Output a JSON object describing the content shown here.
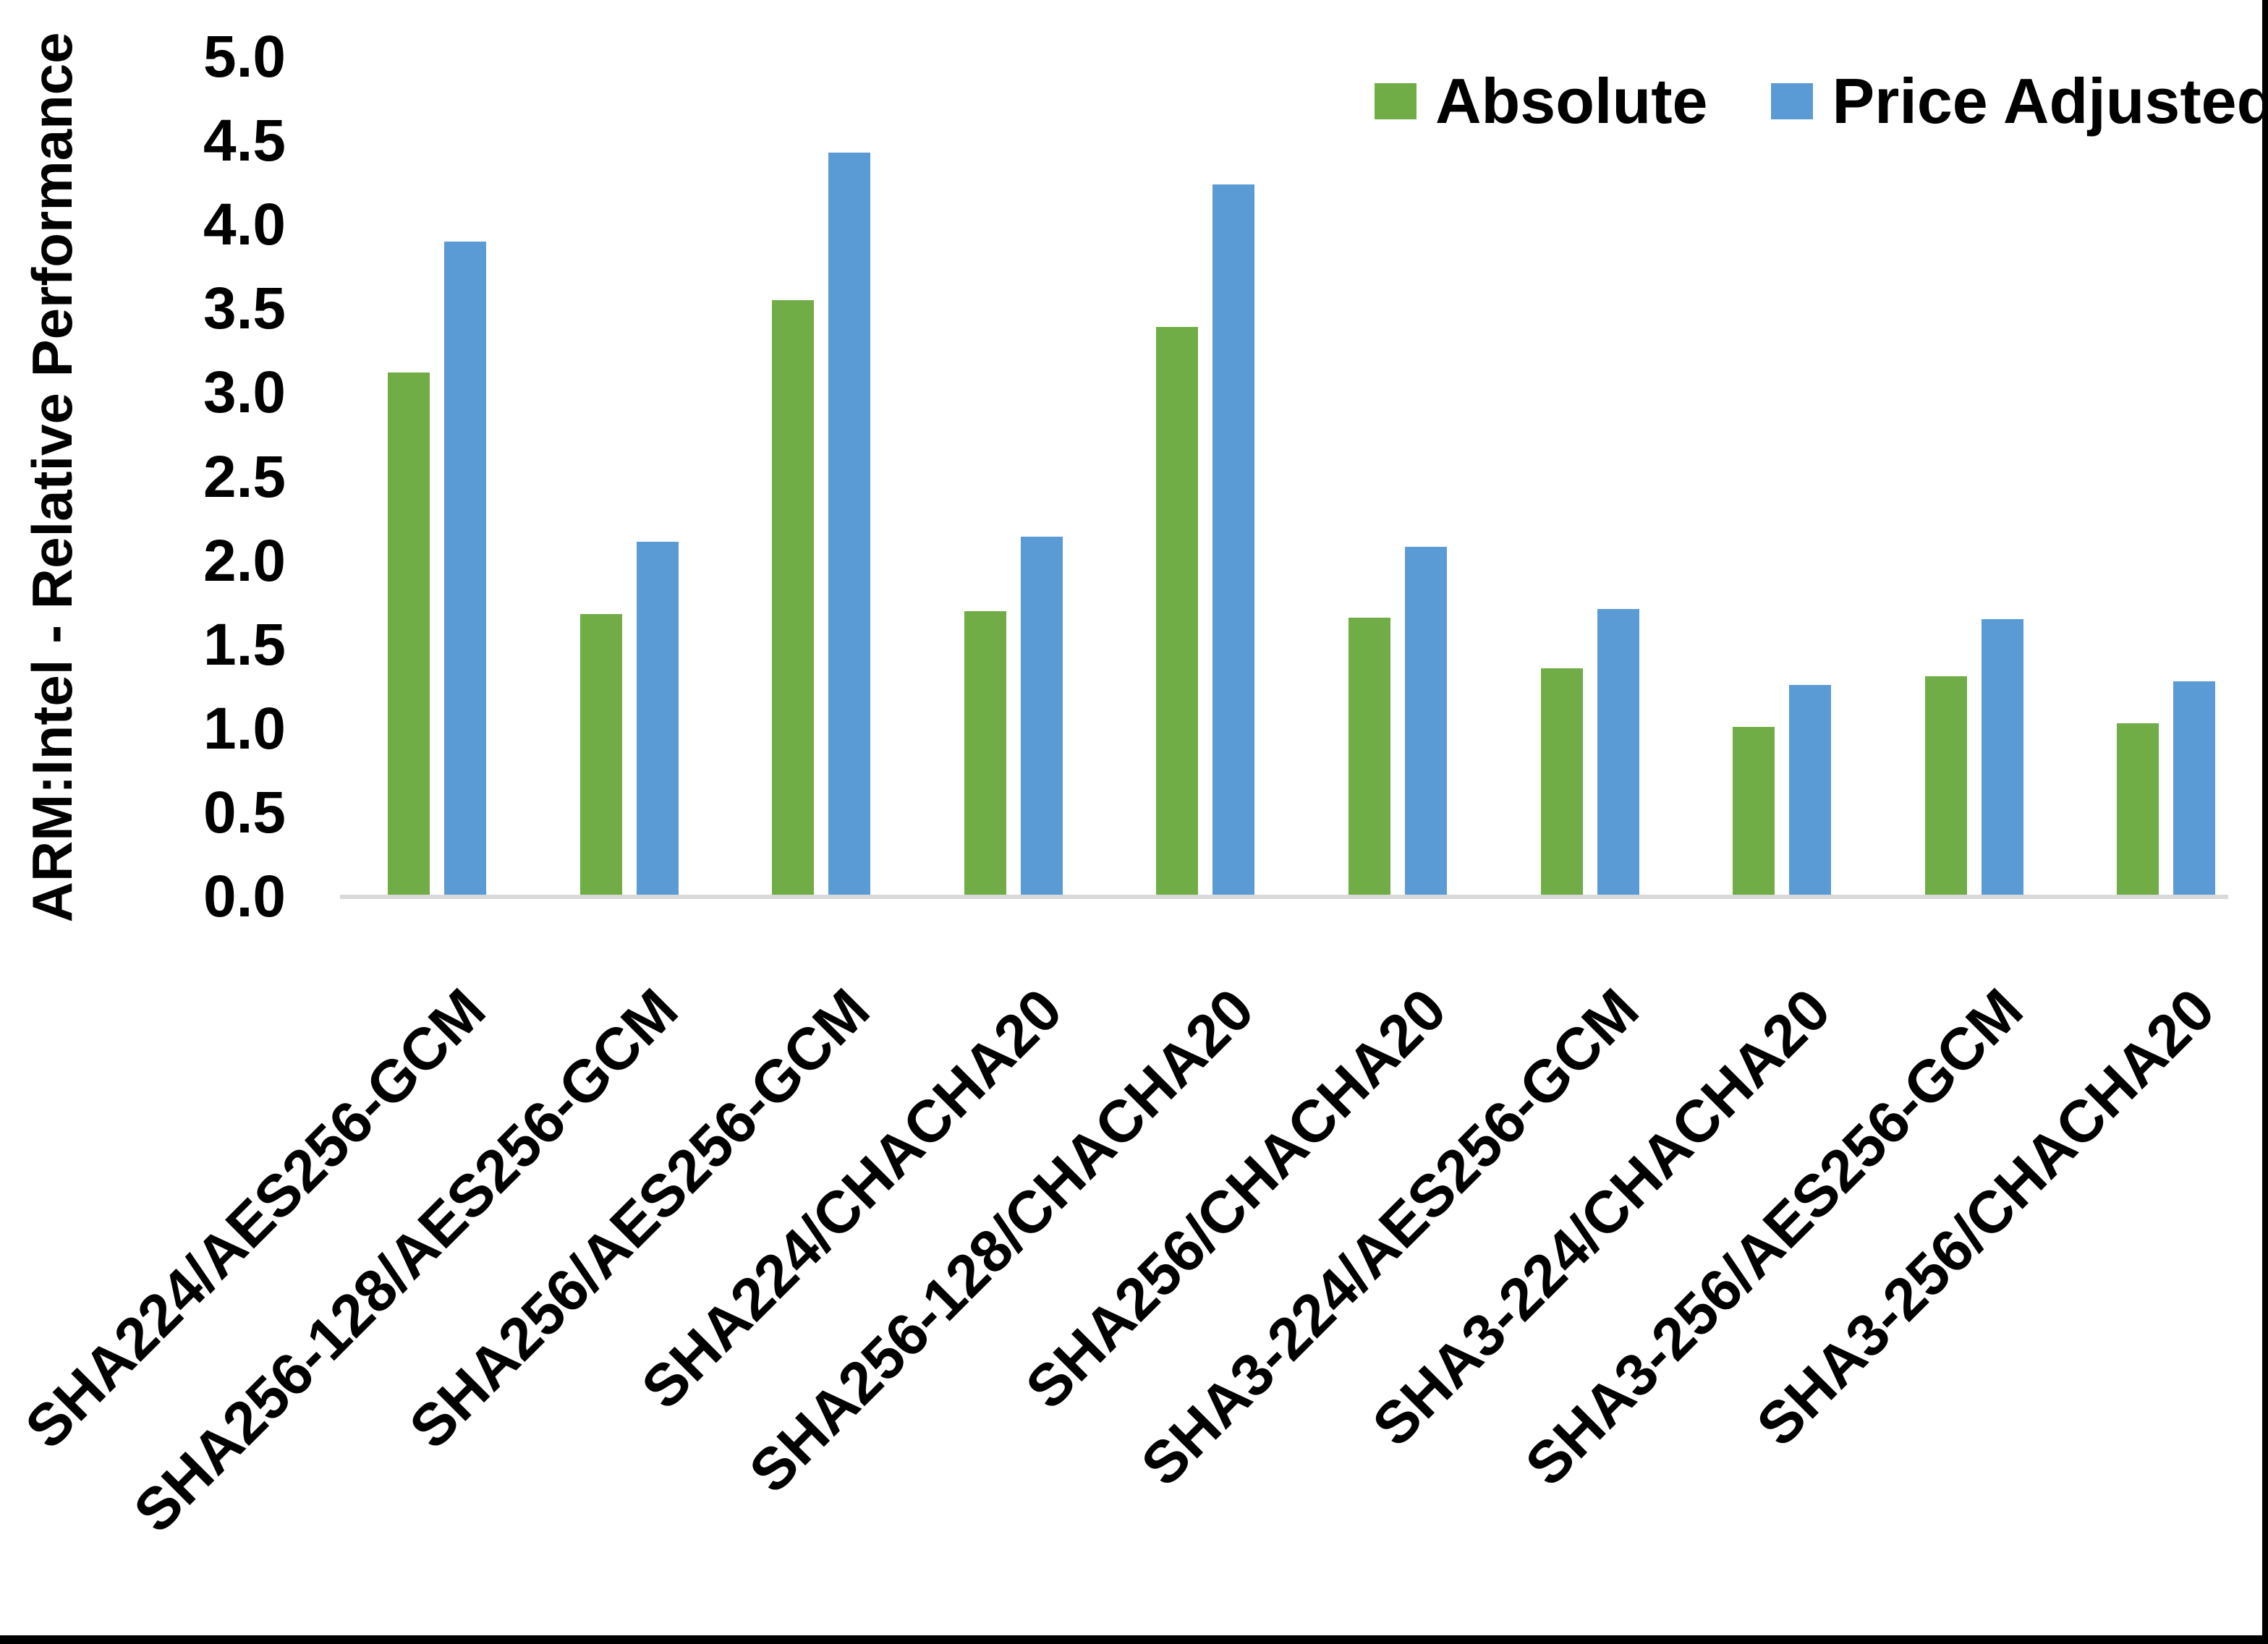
{
  "chart_data": {
    "type": "bar",
    "title": "",
    "xlabel": "",
    "ylabel": "ARM:Intel - Relative Performance",
    "ylim": [
      0.0,
      5.0
    ],
    "ytick_step": 0.5,
    "ytick_labels": [
      "0.0",
      "0.5",
      "1.0",
      "1.5",
      "2.0",
      "2.5",
      "3.0",
      "3.5",
      "4.0",
      "4.5",
      "5.0"
    ],
    "grid": false,
    "legend_position": "top-right",
    "categories": [
      "SHA224/AES256-GCM",
      "SHA256-128/AES256-GCM",
      "SHA256/AES256-GCM",
      "SHA224/CHACHA20",
      "SHA256-128/CHACHA20",
      "SHA256/CHACHA20",
      "SHA3-224/AES256-GCM",
      "SHA3-224/CHACHA20",
      "SHA3-256/AES256-GCM",
      "SHA3-256/CHACHA20"
    ],
    "series": [
      {
        "name": "Absolute",
        "color": "#70AD47",
        "values": [
          3.11,
          1.67,
          3.54,
          1.69,
          3.38,
          1.65,
          1.35,
          1.0,
          1.3,
          1.02
        ]
      },
      {
        "name": "Price Adjusted",
        "color": "#5B9BD5",
        "values": [
          3.89,
          2.1,
          4.42,
          2.13,
          4.23,
          2.07,
          1.7,
          1.25,
          1.64,
          1.27
        ]
      }
    ]
  },
  "colors": {
    "background": "#FFFFFF",
    "axis_line": "#D9D9D9",
    "border": "#000000",
    "text": "#000000",
    "series_absolute": "#70AD47",
    "series_price_adjusted": "#5B9BD5"
  }
}
